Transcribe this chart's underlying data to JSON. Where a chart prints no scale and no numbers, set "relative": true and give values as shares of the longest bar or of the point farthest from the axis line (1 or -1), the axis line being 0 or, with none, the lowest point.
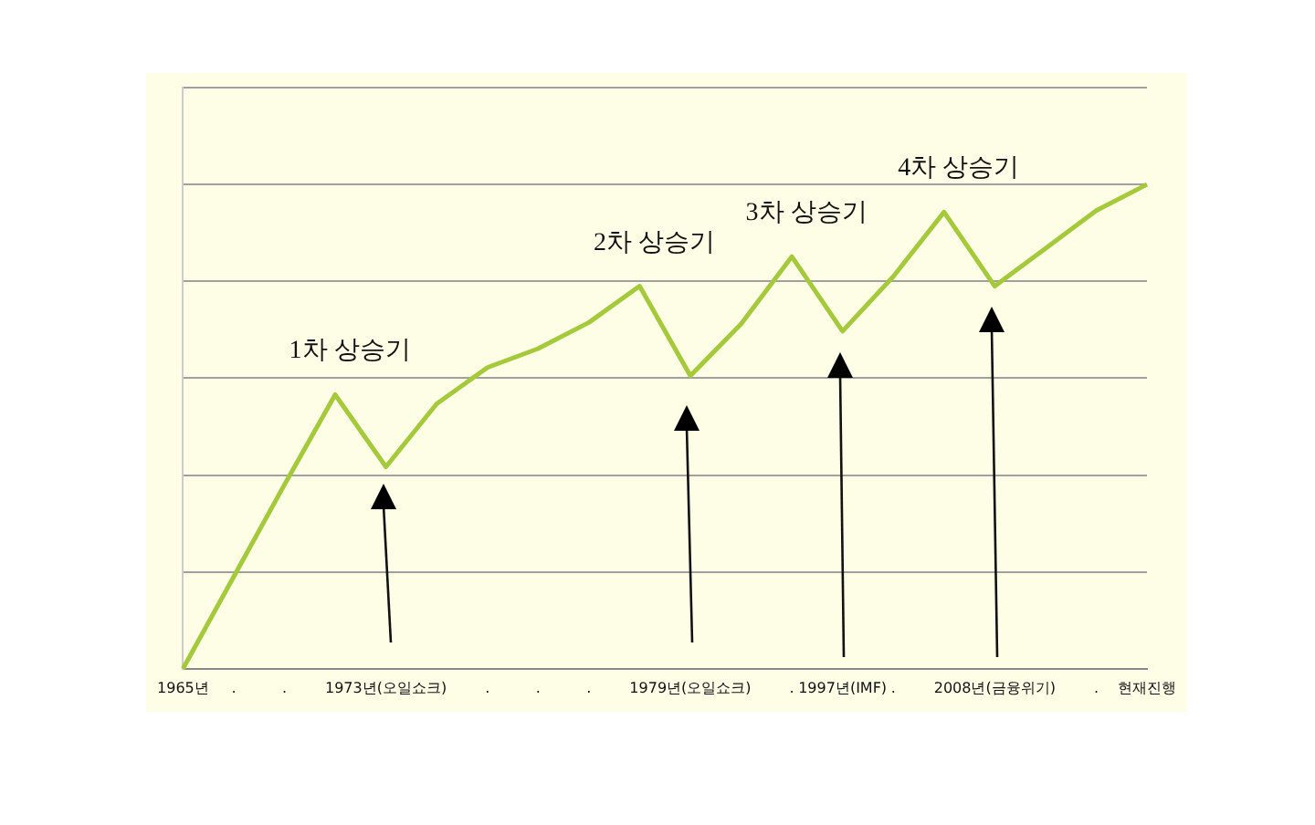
{
  "chart_data": {
    "type": "line",
    "relative": true,
    "categories": [
      "1965년",
      ".",
      ".",
      null,
      "1973년(오일쇼크)",
      null,
      ".",
      ".",
      ".",
      null,
      "1979년(오일쇼크)",
      null,
      ".",
      "1997년(IMF)",
      ".",
      null,
      "2008년(금융위기)",
      null,
      ".",
      "현재진행"
    ],
    "series": [
      {
        "color": "#a4c93a",
        "values": [
          0,
          0.19,
          0.38,
          0.566,
          0.417,
          0.547,
          0.622,
          0.661,
          0.715,
          0.79,
          0.605,
          0.712,
          0.851,
          0.697,
          0.81,
          0.943,
          0.79,
          0.868,
          0.946,
          1
        ]
      }
    ],
    "annotations": [
      "1차 상승기",
      "2차 상승기",
      "3차 상승기",
      "4차 상승기"
    ],
    "grid": "y",
    "legend": false,
    "marker": "none",
    "line_style": "solid"
  }
}
